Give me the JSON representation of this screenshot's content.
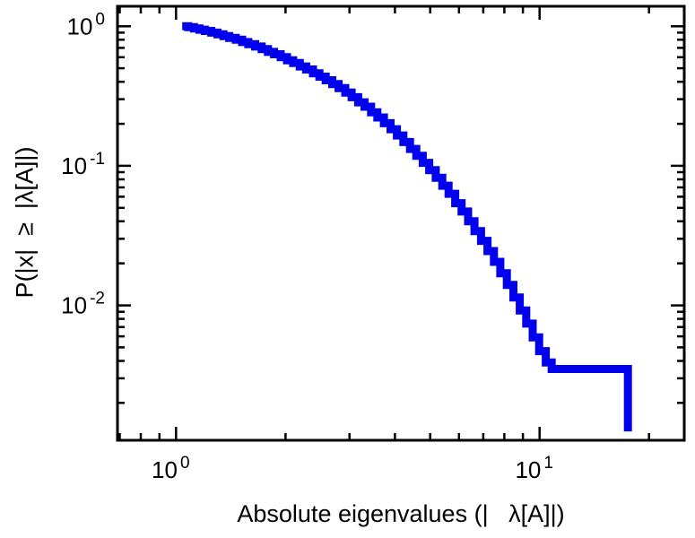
{
  "figure": {
    "background": "#ffffff",
    "frame_color": "#000000"
  },
  "chart_data": {
    "type": "line",
    "subtype": "step-ccdf",
    "title": "",
    "xlabel": "Absolute eigenvalues (|   λ[A]|)",
    "ylabel": "P(|x|  ≥  |λ[A]|)",
    "xscale": "log",
    "yscale": "log",
    "xlim": [
      0.69,
      25
    ],
    "ylim": [
      0.00108,
      1.39
    ],
    "grid": false,
    "legend": "none",
    "line_color": "#0000ee",
    "line_width": 9,
    "x_major_ticks": [
      1,
      10
    ],
    "x_tick_labels": [
      {
        "base": "10",
        "exp": "0"
      },
      {
        "base": "10",
        "exp": "1"
      }
    ],
    "x_minor_ticks": [
      0.7,
      0.8,
      0.9,
      2,
      3,
      4,
      5,
      6,
      7,
      8,
      9,
      20
    ],
    "y_major_ticks": [
      1,
      0.1,
      0.01
    ],
    "y_tick_labels": [
      {
        "base": "10",
        "exp": "0"
      },
      {
        "base": "10",
        "exp": "-1"
      },
      {
        "base": "10",
        "exp": "-2"
      }
    ],
    "y_minor_ticks": [
      0.002,
      0.003,
      0.004,
      0.005,
      0.006,
      0.007,
      0.008,
      0.009,
      0.02,
      0.03,
      0.04,
      0.05,
      0.06,
      0.07,
      0.08,
      0.09,
      0.2,
      0.3,
      0.4,
      0.5,
      0.6,
      0.7,
      0.8,
      0.9
    ],
    "points": [
      [
        1.04,
        1.0
      ],
      [
        1.08,
        0.985
      ],
      [
        1.12,
        0.965
      ],
      [
        1.16,
        0.945
      ],
      [
        1.2,
        0.925
      ],
      [
        1.25,
        0.9
      ],
      [
        1.3,
        0.875
      ],
      [
        1.35,
        0.85
      ],
      [
        1.4,
        0.825
      ],
      [
        1.46,
        0.8
      ],
      [
        1.52,
        0.77
      ],
      [
        1.58,
        0.745
      ],
      [
        1.65,
        0.715
      ],
      [
        1.72,
        0.685
      ],
      [
        1.79,
        0.655
      ],
      [
        1.86,
        0.63
      ],
      [
        1.94,
        0.6
      ],
      [
        2.02,
        0.57
      ],
      [
        2.1,
        0.545
      ],
      [
        2.19,
        0.515
      ],
      [
        2.28,
        0.49
      ],
      [
        2.38,
        0.46
      ],
      [
        2.48,
        0.435
      ],
      [
        2.58,
        0.41
      ],
      [
        2.69,
        0.385
      ],
      [
        2.8,
        0.36
      ],
      [
        2.92,
        0.335
      ],
      [
        3.04,
        0.31
      ],
      [
        3.17,
        0.285
      ],
      [
        3.3,
        0.265
      ],
      [
        3.44,
        0.242
      ],
      [
        3.58,
        0.222
      ],
      [
        3.73,
        0.202
      ],
      [
        3.89,
        0.183
      ],
      [
        4.05,
        0.165
      ],
      [
        4.22,
        0.148
      ],
      [
        4.4,
        0.132
      ],
      [
        4.58,
        0.118
      ],
      [
        4.77,
        0.105
      ],
      [
        4.97,
        0.093
      ],
      [
        5.18,
        0.082
      ],
      [
        5.4,
        0.072
      ],
      [
        5.62,
        0.063
      ],
      [
        5.86,
        0.054
      ],
      [
        6.1,
        0.047
      ],
      [
        6.36,
        0.04
      ],
      [
        6.62,
        0.034
      ],
      [
        6.9,
        0.029
      ],
      [
        7.19,
        0.0245
      ],
      [
        7.49,
        0.0205
      ],
      [
        7.8,
        0.017
      ],
      [
        8.13,
        0.014
      ],
      [
        8.47,
        0.0114
      ],
      [
        8.82,
        0.0092
      ],
      [
        9.19,
        0.0074
      ],
      [
        9.57,
        0.0059
      ],
      [
        9.97,
        0.0047
      ],
      [
        10.4,
        0.0039
      ],
      [
        10.8,
        0.0035
      ],
      [
        17.5,
        0.00125
      ]
    ]
  }
}
